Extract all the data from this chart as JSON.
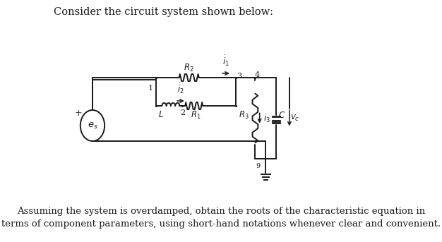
{
  "title_text": "Consider the circuit system shown below:",
  "footer_line1": "Assuming the system is overdamped, obtain the roots of the characteristic equation in",
  "footer_line2": "terms of component parameters, using short-hand notations whenever clear and convenient.",
  "bg_color": "#ffffff",
  "line_color": "#1a1a1a",
  "font_size_title": 10.5,
  "font_size_footer": 9.5,
  "font_size_labels": 8.5,
  "font_size_node": 8,
  "lw": 1.4
}
